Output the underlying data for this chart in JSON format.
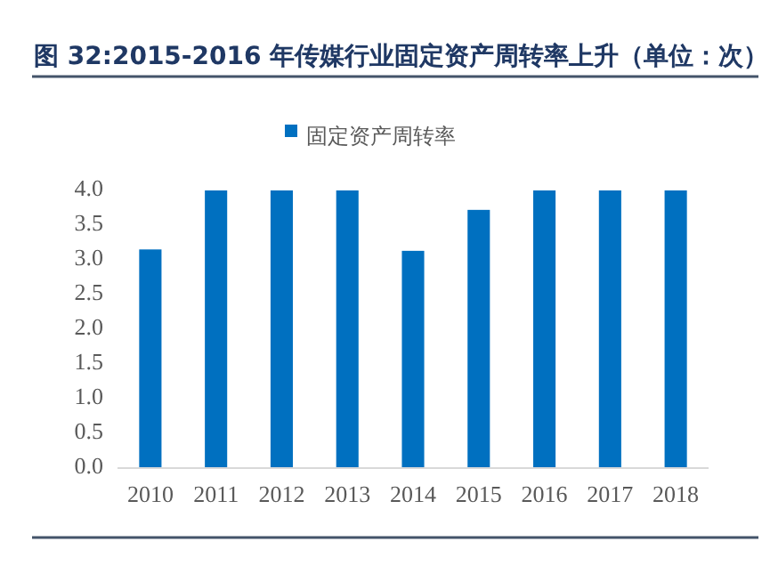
{
  "chart_data": {
    "type": "bar",
    "title": "图 32:2015-2016 年传媒行业固定资产周转率上升（单位：次）",
    "categories": [
      "2010",
      "2011",
      "2012",
      "2013",
      "2014",
      "2015",
      "2016",
      "2017",
      "2018"
    ],
    "series": [
      {
        "name": "固定资产周转率",
        "color": "#0070c0",
        "values": [
          3.15,
          4.0,
          4.0,
          4.0,
          3.13,
          3.72,
          4.0,
          4.0,
          4.0
        ]
      }
    ],
    "ylim": [
      0,
      4
    ],
    "yticks": [
      {
        "value": 0,
        "label": "0.0"
      },
      {
        "value": 0.5,
        "label": "0.5"
      },
      {
        "value": 1,
        "label": "1.0"
      },
      {
        "value": 1.5,
        "label": "1.5"
      },
      {
        "value": 2,
        "label": "2.0"
      },
      {
        "value": 2.5,
        "label": "2.5"
      },
      {
        "value": 3,
        "label": "3.0"
      },
      {
        "value": 3.5,
        "label": "3.5"
      },
      {
        "value": 4,
        "label": "4.0"
      }
    ],
    "grid": false,
    "legend": "top"
  }
}
